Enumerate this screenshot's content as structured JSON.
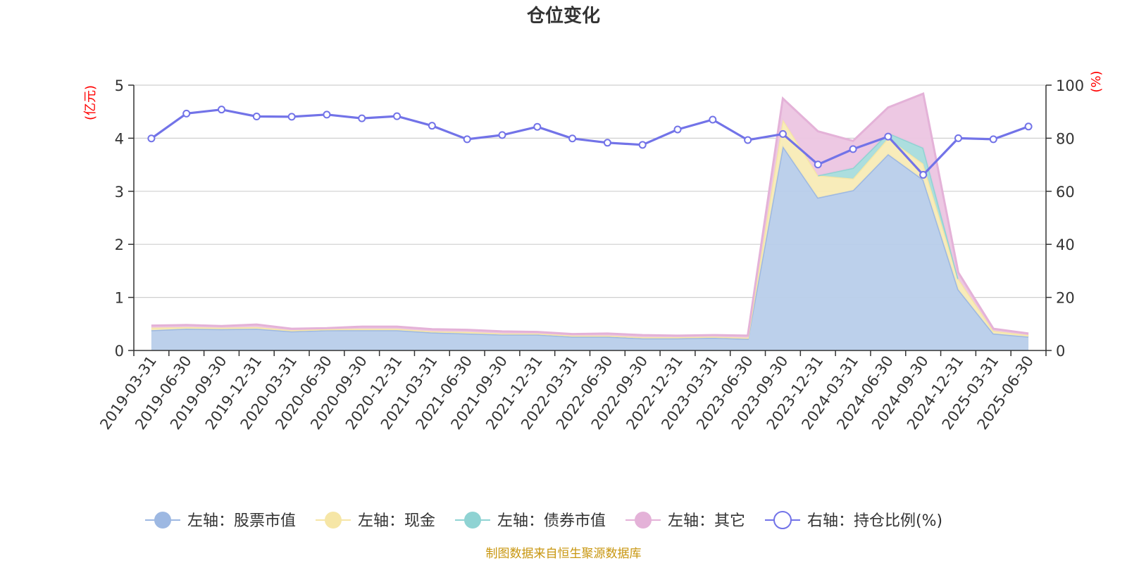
{
  "title": "仓位变化",
  "source": "制图数据来自恒生聚源数据库",
  "left_unit": "(亿元)",
  "right_unit": "(%)",
  "chart_data": {
    "type": "area",
    "title": "仓位变化",
    "categories": [
      "2019-03-31",
      "2019-06-30",
      "2019-09-30",
      "2019-12-31",
      "2020-03-31",
      "2020-06-30",
      "2020-09-30",
      "2020-12-31",
      "2021-03-31",
      "2021-06-30",
      "2021-09-30",
      "2021-12-31",
      "2022-03-31",
      "2022-06-30",
      "2022-09-30",
      "2022-12-31",
      "2023-03-31",
      "2023-06-30",
      "2023-09-30",
      "2023-12-31",
      "2024-03-31",
      "2024-06-30",
      "2024-09-30",
      "2024-12-31",
      "2025-03-31",
      "2025-06-30"
    ],
    "y_left": {
      "label": "(亿元)",
      "ylim": [
        0,
        5
      ],
      "ticks": [
        0,
        1,
        2,
        3,
        4,
        5
      ]
    },
    "y_right": {
      "label": "(%)",
      "ylim": [
        0,
        100
      ],
      "ticks": [
        0,
        20,
        40,
        60,
        80,
        100
      ]
    },
    "grid": true,
    "legend_position": "bottom",
    "series": [
      {
        "name": "左轴：股票市值",
        "axis": "left",
        "stacked": true,
        "color": "#9db8e2",
        "fill": "#b8cdea",
        "values": [
          0.38,
          0.41,
          0.4,
          0.41,
          0.36,
          0.38,
          0.38,
          0.38,
          0.34,
          0.32,
          0.3,
          0.3,
          0.26,
          0.26,
          0.23,
          0.23,
          0.24,
          0.22,
          3.85,
          2.88,
          3.02,
          3.7,
          3.22,
          1.15,
          0.32,
          0.26
        ]
      },
      {
        "name": "左轴：现金",
        "axis": "left",
        "stacked": true,
        "color": "#f6e6a6",
        "fill": "#f8ebb6",
        "values": [
          0.05,
          0.03,
          0.03,
          0.03,
          0.02,
          0.02,
          0.03,
          0.03,
          0.02,
          0.03,
          0.02,
          0.02,
          0.02,
          0.02,
          0.02,
          0.02,
          0.02,
          0.02,
          0.5,
          0.42,
          0.22,
          0.3,
          0.3,
          0.2,
          0.05,
          0.03
        ]
      },
      {
        "name": "左轴：债券市值",
        "axis": "left",
        "stacked": true,
        "color": "#8fd3d3",
        "fill": "#a8dcdc",
        "values": [
          0,
          0,
          0,
          0,
          0,
          0,
          0,
          0,
          0,
          0,
          0,
          0,
          0,
          0,
          0,
          0,
          0,
          0,
          0,
          0,
          0.2,
          0.1,
          0.3,
          0,
          0,
          0
        ]
      },
      {
        "name": "左轴：其它",
        "axis": "left",
        "stacked": true,
        "color": "#e4b2d8",
        "fill": "#ecc5e2",
        "values": [
          0.04,
          0.04,
          0.03,
          0.05,
          0.03,
          0.02,
          0.04,
          0.04,
          0.04,
          0.04,
          0.04,
          0.03,
          0.03,
          0.04,
          0.04,
          0.03,
          0.03,
          0.04,
          0.4,
          0.83,
          0.51,
          0.48,
          1.02,
          0.12,
          0.04,
          0.03
        ]
      },
      {
        "name": "右轴：持仓比例(%)",
        "axis": "right",
        "type": "line",
        "color": "#7273e8",
        "values": [
          79.9,
          89.3,
          90.8,
          88.2,
          88.1,
          88.9,
          87.5,
          88.3,
          84.7,
          79.6,
          81.2,
          84.3,
          79.9,
          78.3,
          77.5,
          83.3,
          87.0,
          79.3,
          81.6,
          70.1,
          75.9,
          80.6,
          66.2,
          80.0,
          79.6,
          84.4
        ]
      }
    ]
  }
}
